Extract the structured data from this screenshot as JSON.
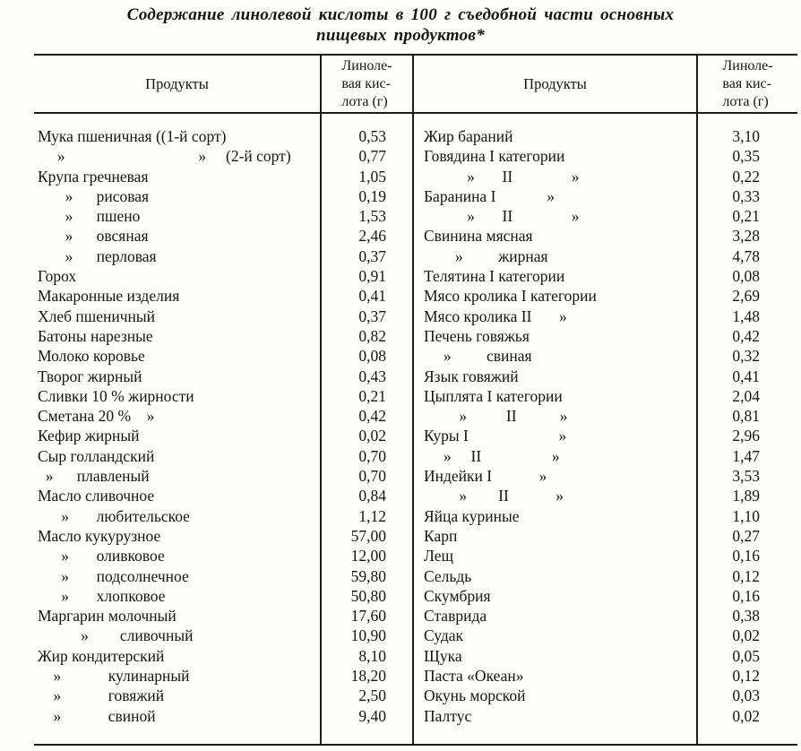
{
  "title": {
    "line1": "Содержание линолевой кислоты в 100 г съедобной части основных",
    "line2": "пищевых продуктов*"
  },
  "table": {
    "header": {
      "products_label": "Продукты",
      "acid_label": "Линоле-\nвая кис-\nлота (г)"
    },
    "left": {
      "rows": [
        {
          "product": "Мука пшеничная ((1-й сорт)",
          "value": "0,53"
        },
        {
          "product": "     »                                  »     (2-й сорт)",
          "value": "0,77"
        },
        {
          "product": "Крупа гречневая",
          "value": "1,05"
        },
        {
          "product": "       »      рисовая",
          "value": "0,19"
        },
        {
          "product": "       »      пшено",
          "value": "1,53"
        },
        {
          "product": "       »      овсяная",
          "value": "2,46"
        },
        {
          "product": "       »      перловая",
          "value": "0,37"
        },
        {
          "product": "Горох",
          "value": "0,91"
        },
        {
          "product": "Макаронные изделия",
          "value": "0,41"
        },
        {
          "product": "Хлеб пшеничный",
          "value": "0,37"
        },
        {
          "product": "Батоны нарезные",
          "value": "0,82"
        },
        {
          "product": "Молоко коровье",
          "value": "0,08"
        },
        {
          "product": "Творог жирный",
          "value": "0,43"
        },
        {
          "product": "Сливки 10 % жирности",
          "value": "0,21"
        },
        {
          "product": "Сметана 20 %    »",
          "value": "0,42"
        },
        {
          "product": "Кефир жирный",
          "value": "0,02"
        },
        {
          "product": "Сыр голландский",
          "value": "0,70"
        },
        {
          "product": "  »      плавленый",
          "value": "0,70"
        },
        {
          "product": "Масло сливочное",
          "value": "0,84"
        },
        {
          "product": "      »       любительское",
          "value": "1,12"
        },
        {
          "product": "Масло кукурузное",
          "value": "57,00"
        },
        {
          "product": "      »       оливковое",
          "value": "12,00"
        },
        {
          "product": "      »       подсолнечное",
          "value": "59,80"
        },
        {
          "product": "      »       хлопковое",
          "value": "50,80"
        },
        {
          "product": "Маргарин молочный",
          "value": "17,60"
        },
        {
          "product": "           »        сливочный",
          "value": "10,90"
        },
        {
          "product": "Жир кондитерский",
          "value": "8,10"
        },
        {
          "product": "    »            кулинарный",
          "value": "18,20"
        },
        {
          "product": "    »            говяжий",
          "value": "2,50"
        },
        {
          "product": "    »            свиной",
          "value": "9,40"
        }
      ]
    },
    "right": {
      "rows": [
        {
          "product": "Жир бараний",
          "value": "3,10"
        },
        {
          "product": "Говядина I категории",
          "value": "0,35"
        },
        {
          "product": "           »       II               »",
          "value": "0,22"
        },
        {
          "product": "Баранина I             »",
          "value": "0,33"
        },
        {
          "product": "           »       II               »",
          "value": "0,21"
        },
        {
          "product": "Свинина мясная",
          "value": "3,28"
        },
        {
          "product": "        »         жирная",
          "value": "4,78"
        },
        {
          "product": "Телятина I категории",
          "value": "0,08"
        },
        {
          "product": "Мясо кролика I категории",
          "value": "2,69"
        },
        {
          "product": "Мясо кролика II       »",
          "value": "1,48"
        },
        {
          "product": "Печень говяжья",
          "value": "0,42"
        },
        {
          "product": "     »         свиная",
          "value": "0,32"
        },
        {
          "product": "Язык говяжий",
          "value": "0,41"
        },
        {
          "product": "Цыплята I категории",
          "value": "2,04"
        },
        {
          "product": "         »          II           »",
          "value": "0,81"
        },
        {
          "product": "Куры I                       »",
          "value": "2,96"
        },
        {
          "product": "     »     II                  »",
          "value": "1,47"
        },
        {
          "product": "Индейки I            »",
          "value": "3,53"
        },
        {
          "product": "         »        II            »",
          "value": "1,89"
        },
        {
          "product": "Яйца куриные",
          "value": "1,10"
        },
        {
          "product": "Карп",
          "value": "0,27"
        },
        {
          "product": "Лещ",
          "value": "0,16"
        },
        {
          "product": "Сельдь",
          "value": "0,12"
        },
        {
          "product": "Скумбрия",
          "value": "0,16"
        },
        {
          "product": "Ставрида",
          "value": "0,38"
        },
        {
          "product": "Судак",
          "value": "0,02"
        },
        {
          "product": "Щука",
          "value": "0,05"
        },
        {
          "product": "Паста «Океан»",
          "value": "0,12"
        },
        {
          "product": "Окунь морской",
          "value": "0,03"
        },
        {
          "product": "Палтус",
          "value": "0,02"
        }
      ]
    }
  }
}
